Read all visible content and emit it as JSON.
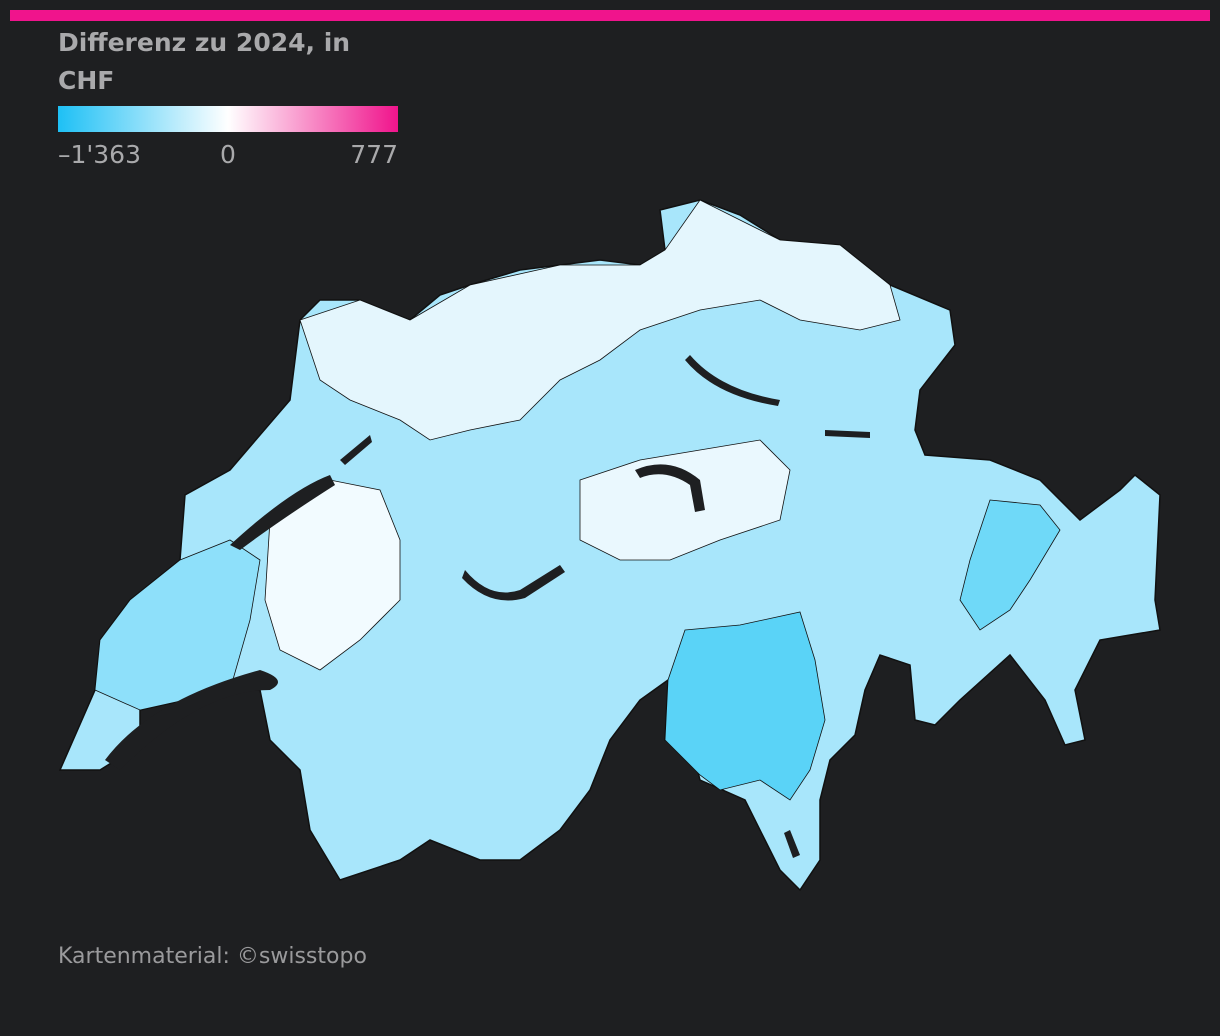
{
  "title": "Differenz zu 2024, in CHF",
  "legend": {
    "colors": [
      "#1ec0f5",
      "#ffffff",
      "#f0148c"
    ],
    "ticks": [
      {
        "value": -1363,
        "label": "–1'363"
      },
      {
        "value": 0,
        "label": "0"
      },
      {
        "value": 777,
        "label": "777"
      }
    ]
  },
  "source": "Kartenmaterial: ©swisstopo"
}
